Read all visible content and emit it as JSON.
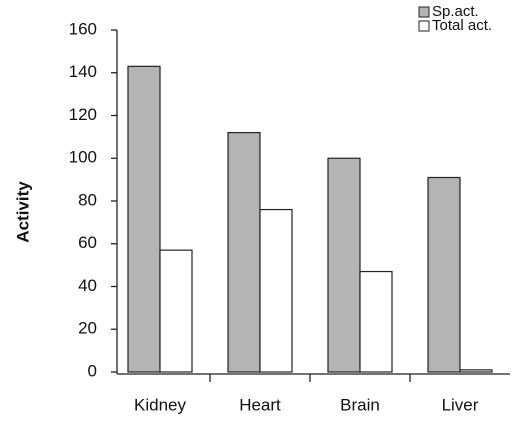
{
  "chart_data": {
    "type": "bar",
    "categories": [
      "Kidney",
      "Heart",
      "Brain",
      "Liver"
    ],
    "series": [
      {
        "name": "Sp.act.",
        "color": "#b4b4b4",
        "values": [
          143,
          112,
          100,
          91
        ]
      },
      {
        "name": "Total act.",
        "color": "#ffffff",
        "values": [
          57,
          76,
          47,
          1
        ]
      }
    ],
    "ylabel": "Activity",
    "ylim": [
      0,
      160
    ],
    "yticks": [
      0,
      20,
      40,
      60,
      80,
      100,
      120,
      140,
      160
    ],
    "legend": "upper right"
  }
}
